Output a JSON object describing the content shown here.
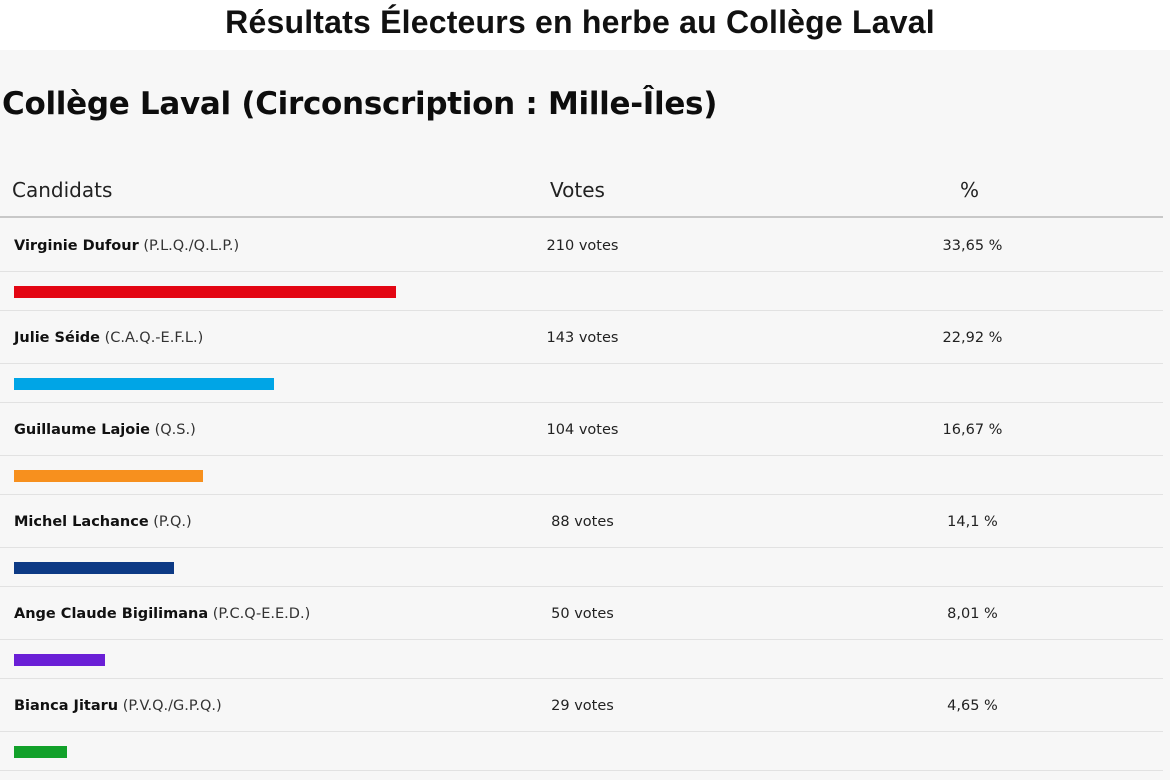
{
  "header": {
    "title": "Résultats Électeurs en herbe au Collège Laval"
  },
  "section": {
    "title": "Collège Laval (Circonscription : Mille-Îles)"
  },
  "table": {
    "col_candidates": "Candidats",
    "col_votes": "Votes",
    "col_pct": "%"
  },
  "chart_data": {
    "type": "bar",
    "title": "Résultats Électeurs en herbe au Collège Laval",
    "subtitle": "Collège Laval (Circonscription : Mille-Îles)",
    "rows": [
      {
        "name": "Virginie Dufour",
        "party": "(P.L.Q./Q.L.P.)",
        "votes": 210,
        "votes_label": "210 votes",
        "pct": 33.65,
        "pct_label": "33,65 %",
        "color": "#e30613"
      },
      {
        "name": "Julie Séide",
        "party": "(C.A.Q.-E.F.L.)",
        "votes": 143,
        "votes_label": "143 votes",
        "pct": 22.92,
        "pct_label": "22,92 %",
        "color": "#00a5e6"
      },
      {
        "name": "Guillaume Lajoie",
        "party": "(Q.S.)",
        "votes": 104,
        "votes_label": "104 votes",
        "pct": 16.67,
        "pct_label": "16,67 %",
        "color": "#f7901e"
      },
      {
        "name": "Michel Lachance",
        "party": "(P.Q.)",
        "votes": 88,
        "votes_label": "88 votes",
        "pct": 14.1,
        "pct_label": "14,1 %",
        "color": "#0d3a85"
      },
      {
        "name": "Ange Claude Bigilimana",
        "party": "(P.C.Q-E.E.D.)",
        "votes": 50,
        "votes_label": "50 votes",
        "pct": 8.01,
        "pct_label": "8,01 %",
        "color": "#6a1fd6"
      },
      {
        "name": "Bianca Jitaru",
        "party": "(P.V.Q./G.P.Q.)",
        "votes": 29,
        "votes_label": "29 votes",
        "pct": 4.65,
        "pct_label": "4,65 %",
        "color": "#12a12a"
      }
    ]
  }
}
